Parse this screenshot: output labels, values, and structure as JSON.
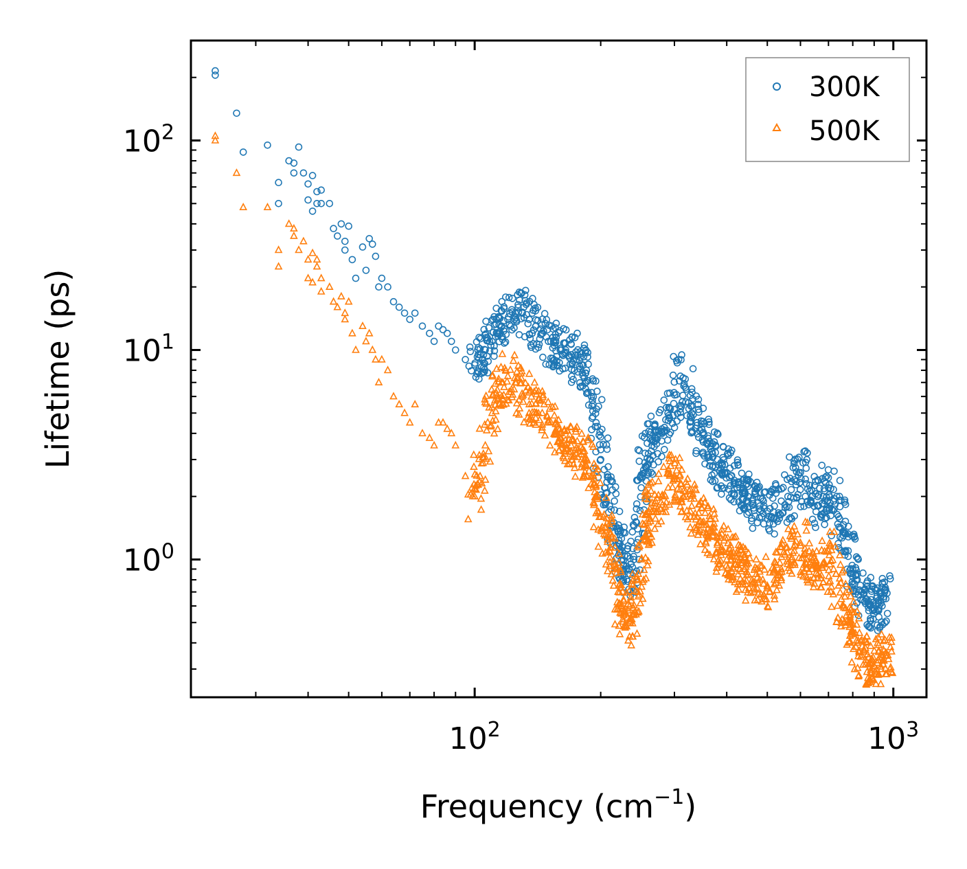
{
  "chart_data": {
    "type": "scatter",
    "title": "",
    "xlabel": "Frequency (cm",
    "xlabel_sup": "−1",
    "xlabel_end": ")",
    "ylabel": "Lifetime (ps)",
    "xscale": "log",
    "yscale": "log",
    "xlim": [
      21,
      1200
    ],
    "ylim": [
      0.22,
      300
    ],
    "x_tick_labels": [
      {
        "value": 100,
        "base": "10",
        "exp": "2"
      },
      {
        "value": 1000,
        "base": "10",
        "exp": "3"
      }
    ],
    "y_tick_labels": [
      {
        "value": 1,
        "base": "10",
        "exp": "0"
      },
      {
        "value": 10,
        "base": "10",
        "exp": "1"
      },
      {
        "value": 100,
        "base": "10",
        "exp": "2"
      }
    ],
    "legend_position": "top-right",
    "series": [
      {
        "name": "300K",
        "marker": "circle",
        "color": "#1f77b4",
        "x": [
          24,
          24,
          27,
          28,
          32,
          34,
          34,
          36,
          37,
          37,
          38,
          39,
          40,
          40,
          41,
          41,
          42,
          42,
          43,
          43,
          45,
          46,
          47,
          48,
          49,
          49,
          50,
          51,
          52,
          54,
          55,
          56,
          57,
          58,
          59,
          60,
          62,
          64,
          66,
          68,
          70,
          72,
          75,
          78,
          80,
          82,
          84,
          86,
          88,
          90,
          95,
          100,
          103,
          106,
          110,
          113,
          116,
          120,
          125,
          130,
          135,
          140,
          145,
          150,
          155,
          160,
          165,
          170,
          175,
          180,
          185,
          190,
          195,
          200,
          205,
          210,
          215,
          220,
          225,
          230,
          235,
          240,
          245,
          250,
          255,
          260,
          265,
          270,
          280,
          290,
          300,
          310,
          320,
          330,
          340,
          350,
          360,
          370,
          380,
          390,
          400,
          410,
          420,
          430,
          440,
          450,
          460,
          480,
          500,
          520,
          540,
          560,
          580,
          600,
          620,
          640,
          660,
          680,
          700,
          720,
          740,
          760,
          780,
          800,
          820,
          840,
          860,
          880,
          900,
          920,
          940,
          960
        ],
        "y": [
          215,
          205,
          135,
          88,
          95,
          63,
          50,
          80,
          70,
          78,
          93,
          70,
          62,
          52,
          46,
          68,
          50,
          57,
          58,
          50,
          50,
          38,
          35,
          40,
          30,
          33,
          39,
          27,
          22,
          31,
          24,
          34,
          32,
          28,
          20,
          22,
          20,
          17,
          16,
          15,
          14,
          15,
          13,
          12,
          11,
          13,
          12.5,
          12,
          11,
          10,
          9,
          8.5,
          9.5,
          10,
          11,
          12,
          13,
          14,
          15,
          15,
          14,
          13,
          12,
          11,
          10.5,
          10,
          10,
          9.5,
          9,
          8.5,
          8,
          6,
          4.5,
          3,
          2.2,
          1.8,
          1.5,
          1.2,
          1,
          0.9,
          0.85,
          1.0,
          1.4,
          2.2,
          2.9,
          3.2,
          3.5,
          3.8,
          4.2,
          4.6,
          5.2,
          7.5,
          6.5,
          5.0,
          4.5,
          4.0,
          3.6,
          3.2,
          3.0,
          2.8,
          2.6,
          2.5,
          2.3,
          2.2,
          2.1,
          2.0,
          1.9,
          1.8,
          1.7,
          1.8,
          1.9,
          2.0,
          2.4,
          2.6,
          2.3,
          2.0,
          1.8,
          2.0,
          2.2,
          1.9,
          1.6,
          1.3,
          1.1,
          0.9,
          0.8,
          0.7,
          0.65,
          0.6,
          0.58,
          0.62,
          0.6,
          0.65
        ]
      },
      {
        "name": "500K",
        "marker": "triangle",
        "color": "#ff7f0e",
        "x": [
          24,
          24,
          27,
          28,
          32,
          34,
          34,
          36,
          37,
          37,
          38,
          39,
          40,
          40,
          41,
          41,
          42,
          42,
          43,
          43,
          45,
          46,
          47,
          48,
          49,
          49,
          50,
          51,
          52,
          54,
          55,
          56,
          57,
          58,
          59,
          60,
          62,
          64,
          66,
          68,
          70,
          72,
          75,
          78,
          80,
          82,
          84,
          86,
          88,
          90,
          95,
          100,
          103,
          106,
          110,
          113,
          116,
          120,
          125,
          130,
          135,
          140,
          145,
          150,
          155,
          160,
          165,
          170,
          175,
          180,
          185,
          190,
          195,
          200,
          205,
          210,
          215,
          220,
          225,
          230,
          235,
          240,
          245,
          250,
          255,
          260,
          265,
          270,
          280,
          290,
          300,
          310,
          320,
          330,
          340,
          350,
          360,
          370,
          380,
          390,
          400,
          410,
          420,
          430,
          440,
          450,
          460,
          480,
          500,
          520,
          540,
          560,
          580,
          600,
          620,
          640,
          660,
          680,
          700,
          720,
          740,
          760,
          780,
          800,
          820,
          840,
          860,
          880,
          900,
          920,
          940,
          960
        ],
        "y": [
          105,
          100,
          70,
          48,
          48,
          30,
          25,
          40,
          35,
          38,
          30,
          33,
          27,
          22,
          21,
          29,
          25,
          27,
          22,
          19,
          20,
          17,
          16,
          18,
          14,
          15,
          17,
          12,
          10,
          13,
          11,
          12,
          10,
          9,
          7,
          9,
          8,
          6,
          5.5,
          5,
          4.5,
          5.5,
          4,
          3.8,
          3.5,
          4.5,
          4.5,
          4.2,
          4,
          3.5,
          2.5,
          2.0,
          2.5,
          3.5,
          5.0,
          6.0,
          7.0,
          7.5,
          7.0,
          6.0,
          5.5,
          5.0,
          5.0,
          4.5,
          4.0,
          4.0,
          3.5,
          3.5,
          3.2,
          3.0,
          2.8,
          2.5,
          2.0,
          1.6,
          1.3,
          1.1,
          0.9,
          0.7,
          0.6,
          0.55,
          0.5,
          0.55,
          0.7,
          1.0,
          1.3,
          1.5,
          1.7,
          1.9,
          2.0,
          2.2,
          2.5,
          2.3,
          2.0,
          1.8,
          1.6,
          1.5,
          1.4,
          1.3,
          1.2,
          1.1,
          1.0,
          1.0,
          0.95,
          0.9,
          0.9,
          0.85,
          0.8,
          0.8,
          0.75,
          0.8,
          0.9,
          1.0,
          1.1,
          1.2,
          1.0,
          0.9,
          0.85,
          0.95,
          1.1,
          0.9,
          0.75,
          0.6,
          0.5,
          0.45,
          0.4,
          0.35,
          0.33,
          0.32,
          0.31,
          0.33,
          0.34,
          0.36
        ]
      }
    ]
  }
}
